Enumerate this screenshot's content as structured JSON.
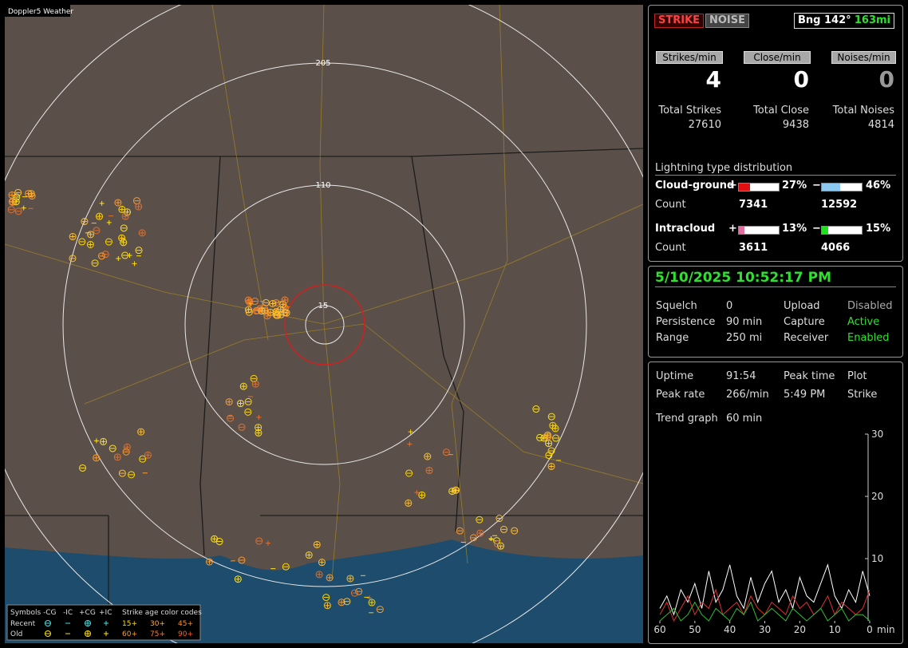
{
  "map": {
    "title": "Doppler5 Weather",
    "ring_labels": [
      "205",
      "110",
      "15"
    ]
  },
  "legend": {
    "header": [
      "Symbols",
      "-CG",
      "-IC",
      "+CG",
      "+IC",
      "Strike age color codes"
    ],
    "recent": "Recent",
    "old": "Old",
    "recent_ages": [
      "15+",
      "30+",
      "45+"
    ],
    "old_ages": [
      "60+",
      "75+",
      "90+"
    ]
  },
  "status": {
    "strike": "STRIKE",
    "noise": "NOISE",
    "bearing": "Bng 142°",
    "distance": "163mi"
  },
  "rates": [
    {
      "label": "Strikes/min",
      "value": 4
    },
    {
      "label": "Close/min",
      "value": 0
    },
    {
      "label": "Noises/min",
      "value": 0
    }
  ],
  "totals": [
    {
      "label": "Total Strikes",
      "value": 27610
    },
    {
      "label": "Total Close",
      "value": 9438
    },
    {
      "label": "Total Noises",
      "value": 4814
    }
  ],
  "distribution": {
    "title": "Lightning type distribution",
    "rows": [
      {
        "name": "Cloud-ground",
        "count_label": "Count",
        "plus": "+",
        "minus": "−",
        "plus_pct": 27,
        "plus_pct_label": "27%",
        "minus_pct": 46,
        "minus_pct_label": "46%",
        "plus_count": 7341,
        "minus_count": 12592
      },
      {
        "name": "Intracloud",
        "count_label": "Count",
        "plus": "+",
        "minus": "−",
        "plus_pct": 13,
        "plus_pct_label": "13%",
        "minus_pct": 15,
        "minus_pct_label": "15%",
        "plus_count": 3611,
        "minus_count": 4066
      }
    ]
  },
  "clock": {
    "datetime": "5/10/2025 10:52:17 PM",
    "rows": [
      [
        "Squelch",
        "0",
        "Upload",
        "Disabled"
      ],
      [
        "Persistence",
        "90 min",
        "Capture",
        "Active"
      ],
      [
        "Range",
        "250 mi",
        "Receiver",
        "Enabled"
      ]
    ]
  },
  "stats": {
    "rows": [
      [
        "Uptime",
        "91:54",
        "Peak time",
        "Plot"
      ],
      [
        "Peak rate",
        "266/min",
        "5:49 PM",
        "Strike"
      ]
    ],
    "trend_label": "Trend graph",
    "trend_value": "60 min"
  },
  "chart_data": {
    "type": "line",
    "x_unit": "min",
    "x": [
      60,
      58,
      56,
      54,
      52,
      50,
      48,
      46,
      44,
      42,
      40,
      38,
      36,
      34,
      32,
      30,
      28,
      26,
      24,
      22,
      20,
      18,
      16,
      14,
      12,
      10,
      8,
      6,
      4,
      2,
      0
    ],
    "xlim": [
      60,
      0
    ],
    "xticks": [
      60,
      50,
      40,
      30,
      20,
      10,
      0
    ],
    "ylim": [
      0,
      30
    ],
    "yticks": [
      10,
      20,
      30
    ],
    "series": [
      {
        "color": "#ffffff",
        "values": [
          2,
          4,
          1,
          5,
          3,
          6,
          2,
          8,
          3,
          5,
          9,
          4,
          2,
          7,
          3,
          6,
          8,
          3,
          5,
          2,
          7,
          4,
          3,
          6,
          9,
          4,
          2,
          5,
          3,
          8,
          4
        ]
      },
      {
        "color": "#e03030",
        "values": [
          1,
          3,
          0,
          2,
          4,
          1,
          3,
          2,
          5,
          1,
          2,
          3,
          1,
          4,
          2,
          1,
          3,
          2,
          1,
          4,
          2,
          3,
          1,
          2,
          4,
          1,
          3,
          2,
          1,
          2,
          5
        ]
      },
      {
        "color": "#30c030",
        "values": [
          0,
          1,
          2,
          0,
          1,
          3,
          1,
          0,
          2,
          1,
          0,
          2,
          1,
          3,
          0,
          1,
          2,
          1,
          0,
          2,
          1,
          0,
          1,
          2,
          0,
          1,
          2,
          0,
          1,
          1,
          0
        ]
      }
    ]
  }
}
